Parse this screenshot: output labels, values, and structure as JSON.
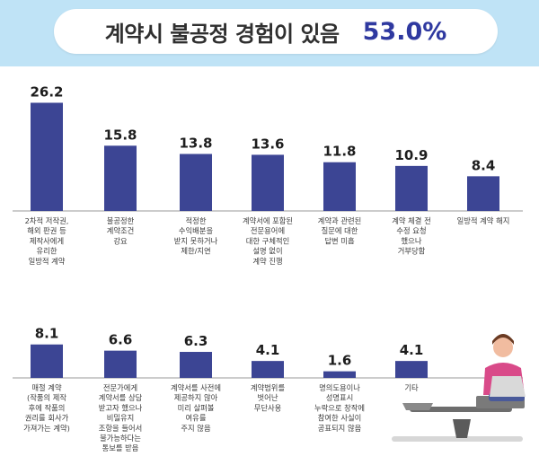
{
  "header": {
    "title": "계약시 불공정 경험이 있음",
    "value": "53.0%"
  },
  "chart_data": [
    {
      "type": "bar",
      "categories": [
        "2차적 저작권,\n해외 판권 등\n제작사에게\n유리한\n일방적 계약",
        "불공정한\n계약조건\n강요",
        "적정한\n수익배분을\n받지 못하거나\n제한/지연",
        "계약서에 포함된\n전문용어에\n대한 구체적인\n설명 없이\n계약 진행",
        "계약과 관련된\n질문에 대한\n답변 미흡",
        "계약 체결 전\n수정 요청\n했으나\n거부당함",
        "일방적 계약 해지"
      ],
      "values": [
        26.2,
        15.8,
        13.8,
        13.6,
        11.8,
        10.9,
        8.4
      ],
      "value_labels": [
        "26.2",
        "15.8",
        "13.8",
        "13.6",
        "11.8",
        "10.9",
        "8.4"
      ]
    },
    {
      "type": "bar",
      "categories": [
        "매절 계약\n(작품의 제작\n후에 작품의\n권리를 회사가\n가져가는 계약)",
        "전문가에게\n계약서를 상담\n받고자 했으나\n비밀유지\n조항을 들어서\n불가능하다는\n통보를 받음",
        "계약서를 사전에\n제공하지 않아\n미리 살펴볼\n여유를\n주지 않음",
        "계약범위를\n벗어난\n무단사용",
        "명의도용이나\n성명표시\n누락으로 창작에\n참여한 사실이\n공표되지 않음",
        "기타"
      ],
      "values": [
        8.1,
        6.6,
        6.3,
        4.1,
        1.6,
        4.1
      ],
      "value_labels": [
        "8.1",
        "6.6",
        "6.3",
        "4.1",
        "1.6",
        "4.1"
      ]
    }
  ],
  "colors": {
    "bar": "#3c4594",
    "header_band": "#bfe3f6",
    "title_value": "#2f39a0"
  }
}
